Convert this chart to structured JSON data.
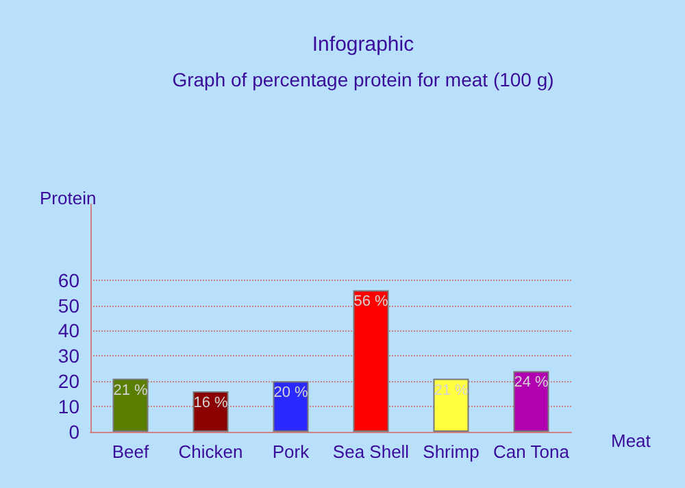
{
  "chart_data": {
    "type": "bar",
    "title": "Infographic",
    "subtitle": "Graph of percentage protein for meat (100 g)",
    "xlabel": "Meat",
    "ylabel": "Protein",
    "categories": [
      "Beef",
      "Chicken",
      "Pork",
      "Sea Shell",
      "Shrimp",
      "Can Tona"
    ],
    "values": [
      21,
      16,
      20,
      56,
      21,
      24
    ],
    "value_labels": [
      "21 %",
      "16 %",
      "20 %",
      "56 %",
      "21 %",
      "24 %"
    ],
    "colors": [
      "#5a7f00",
      "#8b0000",
      "#2a2aff",
      "#ff0000",
      "#ffff40",
      "#b000b0"
    ],
    "ylim": [
      0,
      90
    ],
    "yticks": [
      0,
      10,
      20,
      30,
      40,
      50,
      60
    ],
    "grid": "y"
  }
}
